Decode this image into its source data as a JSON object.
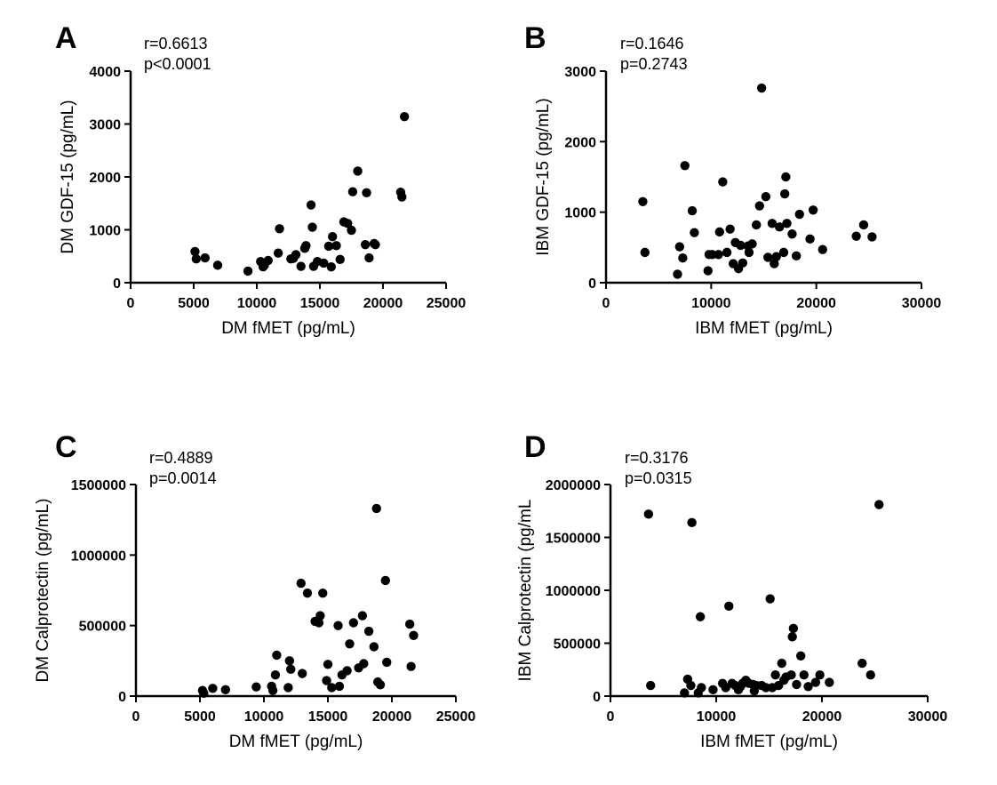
{
  "chart_data": [
    {
      "type": "scatter",
      "panel": "A",
      "stats": [
        "r=0.6613",
        "p<0.0001"
      ],
      "xlabel": "DM fMET (pg/mL)",
      "ylabel": "DM GDF-15 (pg/mL)",
      "xlim": [
        0,
        25000
      ],
      "ylim": [
        0,
        4000
      ],
      "xticks": [
        0,
        5000,
        10000,
        15000,
        20000,
        25000
      ],
      "yticks": [
        0,
        1000,
        2000,
        3000,
        4000
      ],
      "points": [
        [
          5100,
          590
        ],
        [
          5200,
          450
        ],
        [
          5900,
          470
        ],
        [
          6900,
          330
        ],
        [
          9300,
          220
        ],
        [
          10300,
          400
        ],
        [
          10500,
          300
        ],
        [
          10600,
          330
        ],
        [
          10900,
          420
        ],
        [
          11700,
          560
        ],
        [
          11800,
          1020
        ],
        [
          12700,
          450
        ],
        [
          12900,
          460
        ],
        [
          13100,
          530
        ],
        [
          13500,
          310
        ],
        [
          13800,
          650
        ],
        [
          13900,
          700
        ],
        [
          14300,
          1470
        ],
        [
          14400,
          1050
        ],
        [
          14500,
          310
        ],
        [
          14800,
          400
        ],
        [
          15300,
          370
        ],
        [
          15700,
          690
        ],
        [
          15900,
          300
        ],
        [
          16000,
          870
        ],
        [
          16300,
          700
        ],
        [
          16600,
          440
        ],
        [
          16900,
          1150
        ],
        [
          17200,
          1120
        ],
        [
          17500,
          990
        ],
        [
          17600,
          1720
        ],
        [
          18000,
          2110
        ],
        [
          18600,
          720
        ],
        [
          18700,
          1700
        ],
        [
          18900,
          470
        ],
        [
          19300,
          740
        ],
        [
          19400,
          720
        ],
        [
          21400,
          1710
        ],
        [
          21500,
          1620
        ],
        [
          21700,
          3140
        ]
      ]
    },
    {
      "type": "scatter",
      "panel": "B",
      "stats": [
        "r=0.1646",
        "p=0.2743"
      ],
      "xlabel": "IBM fMET (pg/mL)",
      "ylabel": "IBM GDF-15 (pg/mL)",
      "xlim": [
        0,
        30000
      ],
      "ylim": [
        0,
        3000
      ],
      "xticks": [
        0,
        10000,
        20000,
        30000
      ],
      "yticks": [
        0,
        1000,
        2000,
        3000
      ],
      "points": [
        [
          3500,
          1150
        ],
        [
          3700,
          430
        ],
        [
          6800,
          120
        ],
        [
          7000,
          510
        ],
        [
          7300,
          350
        ],
        [
          7500,
          1660
        ],
        [
          8200,
          1020
        ],
        [
          8400,
          710
        ],
        [
          9700,
          170
        ],
        [
          9800,
          400
        ],
        [
          10100,
          400
        ],
        [
          10700,
          400
        ],
        [
          10800,
          720
        ],
        [
          11100,
          1430
        ],
        [
          11500,
          430
        ],
        [
          11800,
          760
        ],
        [
          12100,
          270
        ],
        [
          12300,
          570
        ],
        [
          12600,
          200
        ],
        [
          12800,
          530
        ],
        [
          13000,
          280
        ],
        [
          13500,
          520
        ],
        [
          13600,
          430
        ],
        [
          13900,
          550
        ],
        [
          14300,
          820
        ],
        [
          14600,
          1090
        ],
        [
          14800,
          2760
        ],
        [
          15200,
          1220
        ],
        [
          15400,
          360
        ],
        [
          15800,
          840
        ],
        [
          16000,
          270
        ],
        [
          16200,
          370
        ],
        [
          16500,
          790
        ],
        [
          16900,
          430
        ],
        [
          17000,
          1260
        ],
        [
          17100,
          1500
        ],
        [
          17200,
          840
        ],
        [
          17700,
          690
        ],
        [
          18100,
          380
        ],
        [
          18400,
          970
        ],
        [
          19400,
          620
        ],
        [
          19700,
          1030
        ],
        [
          20600,
          470
        ],
        [
          23800,
          660
        ],
        [
          24500,
          820
        ],
        [
          25300,
          650
        ]
      ]
    },
    {
      "type": "scatter",
      "panel": "C",
      "stats": [
        "r=0.4889",
        "p=0.0014"
      ],
      "xlabel": "DM fMET (pg/mL)",
      "ylabel": "DM Calprotectin (pg/mL)",
      "xlim": [
        0,
        25000
      ],
      "ylim": [
        0,
        1500000
      ],
      "xticks": [
        0,
        5000,
        10000,
        15000,
        20000,
        25000
      ],
      "yticks": [
        0,
        500000,
        1000000,
        1500000
      ],
      "points": [
        [
          5200,
          40000
        ],
        [
          5300,
          20000
        ],
        [
          6000,
          55000
        ],
        [
          7000,
          45000
        ],
        [
          9400,
          65000
        ],
        [
          10600,
          70000
        ],
        [
          10700,
          40000
        ],
        [
          10900,
          150000
        ],
        [
          11000,
          290000
        ],
        [
          11900,
          60000
        ],
        [
          12000,
          250000
        ],
        [
          12100,
          190000
        ],
        [
          12900,
          800000
        ],
        [
          13000,
          160000
        ],
        [
          13400,
          730000
        ],
        [
          14000,
          530000
        ],
        [
          14300,
          520000
        ],
        [
          14400,
          570000
        ],
        [
          14600,
          730000
        ],
        [
          14900,
          110000
        ],
        [
          15000,
          225000
        ],
        [
          15300,
          60000
        ],
        [
          15800,
          500000
        ],
        [
          15900,
          70000
        ],
        [
          16100,
          150000
        ],
        [
          16500,
          180000
        ],
        [
          16700,
          370000
        ],
        [
          17000,
          520000
        ],
        [
          17400,
          200000
        ],
        [
          17700,
          570000
        ],
        [
          17800,
          230000
        ],
        [
          18200,
          460000
        ],
        [
          18600,
          350000
        ],
        [
          18800,
          1330000
        ],
        [
          18900,
          100000
        ],
        [
          19100,
          80000
        ],
        [
          19500,
          820000
        ],
        [
          19600,
          240000
        ],
        [
          21400,
          510000
        ],
        [
          21500,
          210000
        ],
        [
          21700,
          430000
        ]
      ]
    },
    {
      "type": "scatter",
      "panel": "D",
      "stats": [
        "r=0.3176",
        "p=0.0315"
      ],
      "xlabel": "IBM fMET (pg/mL)",
      "ylabel": "IBM Calprotectin (pg/mL",
      "xlim": [
        0,
        30000
      ],
      "ylim": [
        0,
        2000000
      ],
      "xticks": [
        0,
        10000,
        20000,
        30000
      ],
      "yticks": [
        0,
        500000,
        1000000,
        1500000,
        2000000
      ],
      "points": [
        [
          3600,
          1720000
        ],
        [
          3800,
          100000
        ],
        [
          7000,
          30000
        ],
        [
          7300,
          160000
        ],
        [
          7600,
          100000
        ],
        [
          7700,
          1640000
        ],
        [
          8300,
          30000
        ],
        [
          8500,
          750000
        ],
        [
          8600,
          80000
        ],
        [
          9700,
          60000
        ],
        [
          10600,
          120000
        ],
        [
          10900,
          80000
        ],
        [
          11200,
          850000
        ],
        [
          11500,
          120000
        ],
        [
          11800,
          100000
        ],
        [
          12100,
          60000
        ],
        [
          12300,
          90000
        ],
        [
          12500,
          120000
        ],
        [
          12800,
          150000
        ],
        [
          13100,
          120000
        ],
        [
          13500,
          110000
        ],
        [
          13600,
          50000
        ],
        [
          13800,
          100000
        ],
        [
          14300,
          100000
        ],
        [
          14700,
          80000
        ],
        [
          15100,
          920000
        ],
        [
          15300,
          80000
        ],
        [
          15600,
          200000
        ],
        [
          15900,
          100000
        ],
        [
          16200,
          310000
        ],
        [
          16400,
          150000
        ],
        [
          16600,
          180000
        ],
        [
          17100,
          200000
        ],
        [
          17200,
          560000
        ],
        [
          17300,
          640000
        ],
        [
          17600,
          110000
        ],
        [
          18000,
          380000
        ],
        [
          18300,
          200000
        ],
        [
          18700,
          90000
        ],
        [
          19400,
          130000
        ],
        [
          19800,
          200000
        ],
        [
          20700,
          130000
        ],
        [
          23800,
          310000
        ],
        [
          24600,
          200000
        ],
        [
          25400,
          1810000
        ]
      ]
    }
  ]
}
